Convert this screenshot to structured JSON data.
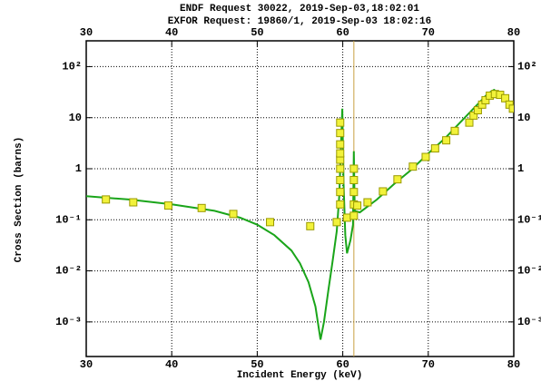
{
  "chart_data": {
    "type": "line",
    "title": "ENDF Request 30022, 2019-Sep-03,18:02:01",
    "subtitle": "EXFOR Request: 19860/1, 2019-Sep-03 18:02:16",
    "x_label": "Incident Energy (keV)",
    "y_label": "Cross Section (barns)",
    "xlim": [
      30,
      80
    ],
    "xticks": [
      30,
      40,
      50,
      60,
      70,
      80
    ],
    "ylim": [
      0.00021,
      320
    ],
    "yticks": [
      {
        "value": 100,
        "label": "10²"
      },
      10,
      1,
      {
        "value": 0.1,
        "label": "10⁻¹"
      },
      {
        "value": 0.01,
        "label": "10⁻²"
      },
      {
        "value": 0.001,
        "label": "10⁻³"
      }
    ],
    "log_y": true,
    "grid": true,
    "vline_x": 61.3,
    "vline_color": "#c8a040",
    "series": [
      {
        "style": "line",
        "color": "#1aa51a",
        "x": [
          30,
          35,
          40,
          45,
          48,
          50,
          52,
          54,
          55,
          56,
          56.8,
          57.4,
          57.8,
          58.3,
          58.8,
          59.3,
          59.6,
          59.8,
          59.95,
          60.1,
          60.3,
          60.5,
          60.9,
          61.2,
          61.3,
          61.4,
          62,
          64,
          66,
          68,
          70,
          72,
          74,
          76,
          77,
          77.7,
          78.5,
          79.3,
          80
        ],
        "y": [
          0.29,
          0.25,
          0.2,
          0.15,
          0.11,
          0.08,
          0.05,
          0.025,
          0.014,
          0.006,
          0.002,
          0.00045,
          0.001,
          0.004,
          0.015,
          0.06,
          0.3,
          3,
          15,
          0.5,
          0.05,
          0.022,
          0.04,
          0.08,
          2.2,
          0.15,
          0.14,
          0.25,
          0.5,
          0.95,
          2,
          4,
          9,
          20,
          30,
          35,
          28,
          22,
          17
        ]
      },
      {
        "style": "markers",
        "color": "#f2f23a",
        "x": [
          32.3,
          35.5,
          39.6,
          43.5,
          47.2,
          51.5,
          56.2,
          59.3,
          59.7,
          59.7,
          59.7,
          59.7,
          59.7,
          59.7,
          59.7,
          59.7,
          59.7,
          60.5,
          61.3,
          61.3,
          61.3,
          61.3,
          61.3,
          61.7,
          62.9,
          64.7,
          66.4,
          68.2,
          69.7,
          70.8,
          72.1,
          73.1,
          74.8,
          75.3,
          75.8,
          76.3,
          76.7,
          77.2,
          77.8,
          78.4,
          79,
          79.5,
          79.9
        ],
        "y": [
          0.25,
          0.22,
          0.19,
          0.17,
          0.13,
          0.09,
          0.075,
          0.09,
          0.2,
          0.35,
          0.6,
          1,
          1.5,
          2,
          3,
          5,
          8,
          0.11,
          0.12,
          0.2,
          0.35,
          0.6,
          1,
          0.19,
          0.22,
          0.36,
          0.62,
          1.1,
          1.7,
          2.5,
          3.6,
          5.5,
          8,
          11,
          14,
          18,
          22,
          27,
          29,
          28,
          24,
          18,
          15
        ]
      }
    ]
  }
}
